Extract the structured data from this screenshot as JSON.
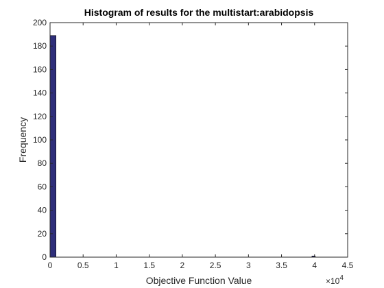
{
  "chart_data": {
    "type": "bar",
    "title": "Histogram of results for the multistart:arabidopsis",
    "xlabel": "Objective Function Value",
    "ylabel": "Frequency",
    "xlim": [
      0,
      4.5
    ],
    "ylim": [
      0,
      200
    ],
    "x_ticks": [
      0,
      0.5,
      1,
      1.5,
      2,
      2.5,
      3,
      3.5,
      4,
      4.5
    ],
    "x_tick_labels": [
      "0",
      "0.5",
      "1",
      "1.5",
      "2",
      "2.5",
      "3",
      "3.5",
      "4",
      "4.5"
    ],
    "y_ticks": [
      0,
      20,
      40,
      60,
      80,
      100,
      120,
      140,
      160,
      180,
      200
    ],
    "y_tick_labels": [
      "0",
      "20",
      "40",
      "60",
      "80",
      "100",
      "120",
      "140",
      "160",
      "180",
      "200"
    ],
    "x_exponent_base": "×10",
    "x_exponent_power": "4",
    "bar_color": "#2e2e7a",
    "bins": [
      {
        "x_start": 0,
        "x_end": 0.09,
        "count": 189
      },
      {
        "x_start": 3.96,
        "x_end": 4.01,
        "count": 1
      }
    ],
    "grid": false
  }
}
